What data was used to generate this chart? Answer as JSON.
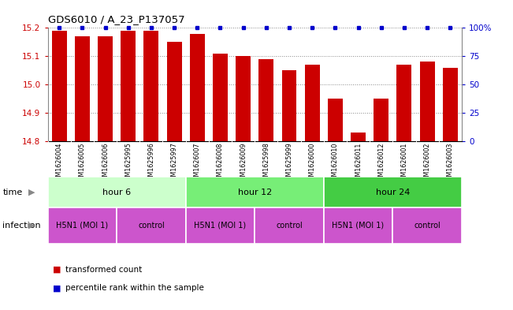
{
  "title": "GDS6010 / A_23_P137057",
  "samples": [
    "GSM1626004",
    "GSM1626005",
    "GSM1626006",
    "GSM1625995",
    "GSM1625996",
    "GSM1625997",
    "GSM1626007",
    "GSM1626008",
    "GSM1626009",
    "GSM1625998",
    "GSM1625999",
    "GSM1626000",
    "GSM1626010",
    "GSM1626011",
    "GSM1626012",
    "GSM1626001",
    "GSM1626002",
    "GSM1626003"
  ],
  "bar_values": [
    15.19,
    15.17,
    15.17,
    15.19,
    15.19,
    15.15,
    15.18,
    15.11,
    15.1,
    15.09,
    15.05,
    15.07,
    14.95,
    14.83,
    14.95,
    15.07,
    15.08,
    15.06
  ],
  "percentile_values": [
    100,
    100,
    100,
    100,
    100,
    100,
    100,
    100,
    100,
    100,
    100,
    100,
    100,
    100,
    100,
    100,
    100,
    100
  ],
  "bar_color": "#cc0000",
  "percentile_color": "#0000cc",
  "ylim_left": [
    14.8,
    15.2
  ],
  "ylim_right": [
    0,
    100
  ],
  "yticks_left": [
    14.8,
    14.9,
    15.0,
    15.1,
    15.2
  ],
  "yticks_right": [
    0,
    25,
    50,
    75,
    100
  ],
  "time_groups": [
    {
      "label": "hour 6",
      "start": 0,
      "end": 6,
      "color": "#ccffcc"
    },
    {
      "label": "hour 12",
      "start": 6,
      "end": 12,
      "color": "#77ee77"
    },
    {
      "label": "hour 24",
      "start": 12,
      "end": 18,
      "color": "#44cc44"
    }
  ],
  "infection_blocks": [
    {
      "label": "H5N1 (MOI 1)",
      "start": 0,
      "end": 3,
      "color": "#dd66cc"
    },
    {
      "label": "control",
      "start": 3,
      "end": 6,
      "color": "#dd66cc"
    },
    {
      "label": "H5N1 (MOI 1)",
      "start": 6,
      "end": 9,
      "color": "#dd66cc"
    },
    {
      "label": "control",
      "start": 9,
      "end": 12,
      "color": "#dd66cc"
    },
    {
      "label": "H5N1 (MOI 1)",
      "start": 12,
      "end": 15,
      "color": "#dd66cc"
    },
    {
      "label": "control",
      "start": 15,
      "end": 18,
      "color": "#dd66cc"
    }
  ],
  "legend_items": [
    {
      "label": "transformed count",
      "color": "#cc0000"
    },
    {
      "label": "percentile rank within the sample",
      "color": "#0000cc"
    }
  ],
  "background_color": "#ffffff",
  "plot_bg_color": "#ffffff",
  "sample_label_bg": "#cccccc",
  "grid_color": "#888888",
  "tick_label_color_left": "#cc0000",
  "tick_label_color_right": "#0000cc"
}
